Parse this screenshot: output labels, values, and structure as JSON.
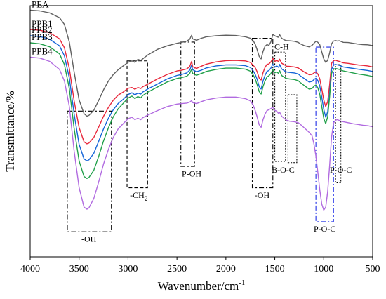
{
  "chart_data": {
    "type": "line",
    "title": "",
    "xlabel": "Wavenumber/cm",
    "xlabel_sup": "-1",
    "ylabel": "Transmittance/%",
    "xlim": [
      4000,
      500
    ],
    "x_reversed": true,
    "xticks": [
      "4000",
      "3500",
      "3000",
      "2500",
      "2000",
      "1500",
      "1000",
      "500"
    ],
    "yticks_shown": false,
    "grid": false,
    "legend": "series names labelled at left end of each curve",
    "series": [
      {
        "name": "PEA",
        "color": "#606060",
        "x": [
          4000,
          3900,
          3800,
          3700,
          3650,
          3600,
          3550,
          3500,
          3450,
          3420,
          3400,
          3350,
          3300,
          3250,
          3200,
          3150,
          3100,
          3050,
          3000,
          2960,
          2930,
          2900,
          2870,
          2850,
          2800,
          2700,
          2600,
          2500,
          2450,
          2400,
          2370,
          2350,
          2340,
          2300,
          2250,
          2200,
          2100,
          2000,
          1900,
          1800,
          1750,
          1720,
          1700,
          1680,
          1660,
          1640,
          1620,
          1600,
          1580,
          1560,
          1540,
          1520,
          1500,
          1480,
          1460,
          1450,
          1430,
          1400,
          1380,
          1350,
          1300,
          1260,
          1240,
          1200,
          1150,
          1120,
          1100,
          1080,
          1060,
          1040,
          1020,
          1000,
          980,
          960,
          940,
          920,
          900,
          880,
          860,
          840,
          820,
          800,
          750,
          700,
          650,
          600,
          550,
          500
        ],
        "y": [
          98.2,
          97.9,
          97.1,
          95.2,
          92.5,
          85.5,
          73.5,
          62.5,
          57.0,
          56.0,
          56.3,
          58.3,
          62.3,
          66.5,
          70.0,
          72.6,
          74.5,
          76.0,
          77.4,
          78.0,
          77.4,
          78.6,
          78.2,
          78.8,
          80.3,
          82.6,
          84.0,
          85.0,
          85.4,
          85.9,
          86.6,
          88.2,
          86.8,
          86.2,
          87.0,
          87.6,
          88.0,
          88.2,
          88.1,
          87.6,
          87.0,
          86.0,
          84.6,
          82.4,
          79.8,
          78.8,
          81.8,
          83.8,
          84.5,
          84.2,
          85.6,
          88.5,
          88.0,
          87.6,
          87.4,
          88.4,
          87.0,
          86.3,
          86.1,
          86.0,
          85.8,
          85.4,
          84.8,
          84.1,
          83.6,
          84.2,
          85.0,
          85.8,
          85.4,
          84.4,
          81.6,
          78.8,
          77.4,
          78.2,
          81.2,
          84.8,
          85.9,
          86.1,
          85.9,
          86.0,
          85.7,
          85.4,
          85.3,
          85.0,
          84.7,
          84.5,
          84.4,
          84.1
        ]
      },
      {
        "name": "PPB1",
        "color": "#e8283c",
        "x": [
          4000,
          3900,
          3800,
          3700,
          3650,
          3600,
          3550,
          3500,
          3450,
          3420,
          3400,
          3350,
          3300,
          3250,
          3200,
          3150,
          3100,
          3050,
          3000,
          2960,
          2930,
          2900,
          2870,
          2850,
          2800,
          2700,
          2600,
          2500,
          2450,
          2400,
          2370,
          2350,
          2340,
          2300,
          2250,
          2200,
          2100,
          2000,
          1900,
          1800,
          1750,
          1720,
          1700,
          1680,
          1660,
          1640,
          1620,
          1600,
          1580,
          1560,
          1540,
          1520,
          1500,
          1480,
          1460,
          1450,
          1430,
          1400,
          1380,
          1350,
          1300,
          1260,
          1240,
          1200,
          1150,
          1120,
          1100,
          1080,
          1060,
          1040,
          1020,
          1000,
          980,
          960,
          940,
          920,
          900,
          880,
          860,
          840,
          820,
          800,
          750,
          700,
          650,
          600,
          550,
          500
        ],
        "y": [
          90.5,
          90.2,
          89.2,
          86.8,
          83.2,
          75.0,
          62.0,
          51.5,
          45.8,
          45.0,
          45.3,
          47.5,
          51.7,
          56.0,
          59.5,
          62.4,
          64.4,
          65.6,
          67.1,
          67.4,
          66.7,
          67.4,
          67.0,
          67.7,
          68.7,
          70.8,
          72.6,
          74.0,
          74.3,
          74.8,
          75.7,
          77.8,
          75.7,
          75.0,
          75.9,
          76.7,
          77.6,
          78.1,
          78.2,
          78.0,
          77.4,
          76.2,
          75.3,
          73.6,
          71.2,
          70.4,
          73.3,
          75.4,
          76.6,
          76.8,
          77.6,
          79.0,
          77.8,
          78.2,
          77.7,
          78.7,
          77.1,
          76.4,
          75.9,
          75.8,
          75.6,
          75.2,
          74.6,
          73.6,
          72.5,
          72.6,
          73.2,
          73.6,
          72.8,
          70.8,
          66.8,
          62.5,
          59.8,
          61.8,
          68.6,
          77.0,
          78.1,
          78.3,
          78.0,
          77.8,
          77.5,
          77.2,
          77.0,
          76.7,
          76.4,
          76.2,
          76.0,
          75.6
        ]
      },
      {
        "name": "PPB2",
        "color": "#1565d8",
        "x": [
          4000,
          3900,
          3800,
          3700,
          3650,
          3600,
          3550,
          3500,
          3450,
          3420,
          3400,
          3350,
          3300,
          3250,
          3200,
          3150,
          3100,
          3050,
          3000,
          2960,
          2930,
          2900,
          2870,
          2850,
          2800,
          2700,
          2600,
          2500,
          2450,
          2400,
          2370,
          2350,
          2340,
          2300,
          2250,
          2200,
          2100,
          2000,
          1900,
          1800,
          1750,
          1720,
          1700,
          1680,
          1660,
          1640,
          1620,
          1600,
          1580,
          1560,
          1540,
          1520,
          1500,
          1480,
          1460,
          1450,
          1430,
          1400,
          1380,
          1350,
          1300,
          1260,
          1240,
          1200,
          1150,
          1120,
          1100,
          1080,
          1060,
          1040,
          1020,
          1000,
          980,
          960,
          940,
          920,
          900,
          880,
          860,
          840,
          820,
          800,
          750,
          700,
          650,
          600,
          550,
          500
        ],
        "y": [
          88.0,
          87.7,
          86.6,
          84.0,
          80.0,
          71.2,
          56.8,
          44.8,
          39.0,
          38.2,
          38.6,
          41.2,
          46.0,
          51.0,
          55.2,
          58.6,
          61.1,
          62.7,
          64.6,
          65.3,
          64.5,
          65.2,
          64.8,
          65.6,
          66.8,
          68.8,
          70.8,
          72.2,
          72.6,
          73.2,
          74.3,
          76.3,
          74.5,
          73.7,
          74.3,
          75.2,
          76.0,
          76.4,
          76.4,
          76.1,
          75.4,
          74.0,
          72.6,
          70.6,
          67.8,
          66.8,
          70.0,
          72.2,
          73.8,
          74.2,
          75.1,
          76.7,
          75.5,
          76.0,
          75.4,
          76.6,
          74.8,
          74.0,
          73.6,
          73.4,
          73.2,
          72.8,
          72.1,
          71.0,
          69.6,
          69.8,
          70.6,
          71.1,
          70.2,
          68.0,
          63.5,
          58.8,
          55.6,
          57.8,
          65.2,
          74.6,
          76.3,
          76.6,
          76.4,
          76.2,
          75.9,
          75.6,
          75.3,
          75.0,
          74.7,
          74.4,
          74.2,
          73.8
        ]
      },
      {
        "name": "PPB3",
        "color": "#21a04a",
        "x": [
          4000,
          3900,
          3800,
          3700,
          3650,
          3600,
          3550,
          3500,
          3450,
          3420,
          3400,
          3350,
          3300,
          3250,
          3200,
          3150,
          3100,
          3050,
          3000,
          2960,
          2930,
          2900,
          2870,
          2850,
          2800,
          2700,
          2600,
          2500,
          2450,
          2400,
          2370,
          2350,
          2340,
          2300,
          2250,
          2200,
          2100,
          2000,
          1900,
          1800,
          1750,
          1720,
          1700,
          1680,
          1660,
          1640,
          1620,
          1600,
          1580,
          1560,
          1540,
          1520,
          1500,
          1480,
          1460,
          1450,
          1430,
          1400,
          1380,
          1350,
          1300,
          1260,
          1240,
          1200,
          1150,
          1120,
          1100,
          1080,
          1060,
          1040,
          1020,
          1000,
          980,
          960,
          940,
          920,
          900,
          880,
          860,
          840,
          820,
          800,
          750,
          700,
          650,
          600,
          550,
          500
        ],
        "y": [
          85.2,
          84.8,
          83.6,
          80.8,
          76.5,
          67.0,
          51.0,
          38.2,
          32.0,
          31.2,
          31.6,
          34.4,
          40.0,
          46.2,
          51.4,
          55.8,
          59.0,
          61.1,
          63.2,
          64.0,
          63.0,
          63.8,
          63.3,
          64.2,
          65.5,
          67.6,
          69.6,
          71.0,
          71.4,
          71.9,
          73.0,
          74.7,
          73.0,
          72.3,
          73.0,
          73.8,
          74.6,
          75.1,
          75.1,
          74.7,
          73.9,
          72.4,
          70.8,
          68.5,
          65.8,
          64.8,
          67.8,
          70.0,
          71.6,
          72.1,
          73.0,
          74.5,
          73.3,
          73.6,
          73.0,
          74.1,
          72.2,
          71.4,
          71.0,
          70.8,
          70.6,
          70.1,
          69.4,
          68.2,
          66.8,
          67.0,
          67.9,
          68.4,
          67.3,
          64.6,
          59.8,
          55.2,
          53.0,
          55.8,
          63.8,
          73.0,
          74.6,
          75.0,
          74.8,
          74.6,
          74.3,
          74.0,
          73.6,
          73.2,
          72.8,
          72.5,
          72.2,
          71.8
        ]
      },
      {
        "name": "PPB4",
        "color": "#b16be0",
        "x": [
          4000,
          3900,
          3800,
          3700,
          3650,
          3600,
          3550,
          3500,
          3450,
          3420,
          3400,
          3350,
          3300,
          3250,
          3200,
          3150,
          3100,
          3050,
          3000,
          2960,
          2930,
          2900,
          2870,
          2850,
          2800,
          2700,
          2600,
          2500,
          2450,
          2400,
          2370,
          2350,
          2340,
          2300,
          2250,
          2200,
          2100,
          2000,
          1900,
          1800,
          1750,
          1720,
          1700,
          1680,
          1660,
          1640,
          1620,
          1600,
          1580,
          1560,
          1540,
          1520,
          1500,
          1480,
          1460,
          1450,
          1430,
          1400,
          1380,
          1350,
          1300,
          1260,
          1240,
          1200,
          1150,
          1120,
          1100,
          1080,
          1060,
          1040,
          1020,
          1000,
          980,
          960,
          940,
          920,
          900,
          880,
          860,
          840,
          820,
          800,
          750,
          700,
          650,
          600,
          550,
          500
        ],
        "y": [
          79.5,
          79.1,
          77.8,
          74.6,
          70.0,
          59.8,
          42.0,
          27.6,
          19.8,
          19.0,
          19.5,
          23.2,
          29.8,
          37.0,
          42.8,
          47.6,
          51.0,
          53.0,
          55.0,
          55.6,
          54.6,
          55.2,
          54.6,
          55.4,
          56.4,
          58.2,
          59.8,
          60.8,
          61.0,
          61.2,
          61.6,
          62.2,
          61.4,
          61.0,
          61.8,
          62.5,
          63.2,
          63.6,
          63.6,
          63.0,
          62.1,
          60.4,
          58.2,
          55.6,
          52.6,
          51.6,
          54.6,
          56.8,
          58.2,
          58.6,
          59.0,
          59.5,
          58.3,
          58.0,
          57.0,
          57.6,
          56.0,
          55.0,
          54.4,
          54.0,
          53.8,
          53.4,
          52.8,
          51.4,
          49.6,
          48.2,
          45.0,
          40.2,
          33.6,
          26.6,
          21.0,
          18.6,
          19.8,
          26.0,
          36.4,
          47.6,
          53.2,
          54.4,
          54.6,
          54.3,
          54.0,
          53.8,
          53.4,
          53.0,
          52.7,
          52.4,
          52.2,
          51.8
        ]
      }
    ],
    "annotations": [
      {
        "text": "-OH",
        "color": "#000000"
      },
      {
        "text": "-CH",
        "sub": "2",
        "color": "#000000"
      },
      {
        "text": "P-OH",
        "color": "#000000"
      },
      {
        "text": "-OH",
        "color": "#000000"
      },
      {
        "text": "C-H",
        "color": "#000000"
      },
      {
        "text": "B-O-C",
        "color": "#e8283c"
      },
      {
        "text": "P-O-C",
        "color": "#000000"
      },
      {
        "text": "P-O-C",
        "color": "#000000"
      }
    ]
  }
}
